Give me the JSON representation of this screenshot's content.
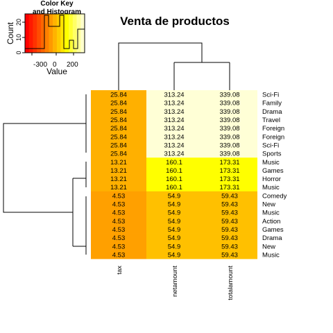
{
  "chart_data": {
    "type": "heatmap",
    "title": "Venta de productos",
    "columns": [
      "tax",
      "netamount",
      "totalamount"
    ],
    "rows": [
      {
        "label": "Sci-Fi",
        "values": [
          25.84,
          313.24,
          339.08
        ],
        "cells": [
          "25.84",
          "313.24",
          "339.08"
        ]
      },
      {
        "label": "Family",
        "values": [
          25.84,
          313.24,
          339.08
        ],
        "cells": [
          "25.84",
          "313.24",
          "339.08"
        ]
      },
      {
        "label": "Drama",
        "values": [
          25.84,
          313.24,
          339.08
        ],
        "cells": [
          "25.84",
          "313.24",
          "339.08"
        ]
      },
      {
        "label": "Travel",
        "values": [
          25.84,
          313.24,
          339.08
        ],
        "cells": [
          "25.84",
          "313.24",
          "339.08"
        ]
      },
      {
        "label": "Foreign",
        "values": [
          25.84,
          313.24,
          339.08
        ],
        "cells": [
          "25.84",
          "313.24",
          "339.08"
        ]
      },
      {
        "label": "Foreign",
        "values": [
          25.84,
          313.24,
          339.08
        ],
        "cells": [
          "25.84",
          "313.24",
          "339.08"
        ]
      },
      {
        "label": "Sci-Fi",
        "values": [
          25.84,
          313.24,
          339.08
        ],
        "cells": [
          "25.84",
          "313.24",
          "339.08"
        ]
      },
      {
        "label": "Sports",
        "values": [
          25.84,
          313.24,
          339.08
        ],
        "cells": [
          "25.84",
          "313.24",
          "339.08"
        ]
      },
      {
        "label": "Music",
        "values": [
          13.21,
          160.1,
          173.31
        ],
        "cells": [
          "13.21",
          "160.1",
          "173.31"
        ]
      },
      {
        "label": "Games",
        "values": [
          13.21,
          160.1,
          173.31
        ],
        "cells": [
          "13.21",
          "160.1",
          "173.31"
        ]
      },
      {
        "label": "Horror",
        "values": [
          13.21,
          160.1,
          173.31
        ],
        "cells": [
          "13.21",
          "160.1",
          "173.31"
        ]
      },
      {
        "label": "Music",
        "values": [
          13.21,
          160.1,
          173.31
        ],
        "cells": [
          "13.21",
          "160.1",
          "173.31"
        ]
      },
      {
        "label": "Comedy",
        "values": [
          4.53,
          54.9,
          59.43
        ],
        "cells": [
          "4.53",
          "54.9",
          "59.43"
        ]
      },
      {
        "label": "New",
        "values": [
          4.53,
          54.9,
          59.43
        ],
        "cells": [
          "4.53",
          "54.9",
          "59.43"
        ]
      },
      {
        "label": "Music",
        "values": [
          4.53,
          54.9,
          59.43
        ],
        "cells": [
          "4.53",
          "54.9",
          "59.43"
        ]
      },
      {
        "label": "Action",
        "values": [
          4.53,
          54.9,
          59.43
        ],
        "cells": [
          "4.53",
          "54.9",
          "59.43"
        ]
      },
      {
        "label": "Games",
        "values": [
          4.53,
          54.9,
          59.43
        ],
        "cells": [
          "4.53",
          "54.9",
          "59.43"
        ]
      },
      {
        "label": "Drama",
        "values": [
          4.53,
          54.9,
          59.43
        ],
        "cells": [
          "4.53",
          "54.9",
          "59.43"
        ]
      },
      {
        "label": "New",
        "values": [
          4.53,
          54.9,
          59.43
        ],
        "cells": [
          "4.53",
          "54.9",
          "59.43"
        ]
      },
      {
        "label": "Music",
        "values": [
          4.53,
          54.9,
          59.43
        ],
        "cells": [
          "4.53",
          "54.9",
          "59.43"
        ]
      }
    ],
    "row_groups": [
      {
        "start": 0,
        "count": 8,
        "colors": [
          "#ffb000",
          "#ffffd6",
          "#ffffd6"
        ]
      },
      {
        "start": 8,
        "count": 4,
        "colors": [
          "#ffb000",
          "#ffff00",
          "#ffff00"
        ]
      },
      {
        "start": 12,
        "count": 8,
        "colors": [
          "#ffa000",
          "#ffc000",
          "#ffc000"
        ]
      }
    ],
    "color_key": {
      "title_line1": "Color Key",
      "title_line2": "and Histogram",
      "xlabel": "Value",
      "ylabel": "Count",
      "x_ticks": [
        "-300",
        "0",
        "200"
      ],
      "y_ticks": [
        "0",
        "10",
        "20"
      ],
      "colors": [
        "#ff0000",
        "#ff1a00",
        "#ff3300",
        "#ff4d00",
        "#ff6600",
        "#ff8000",
        "#ff9900",
        "#ffb300",
        "#ffcc00",
        "#ffe600",
        "#ffff00",
        "#ffff33",
        "#ffff66",
        "#ffff99",
        "#ffffcc"
      ]
    }
  }
}
